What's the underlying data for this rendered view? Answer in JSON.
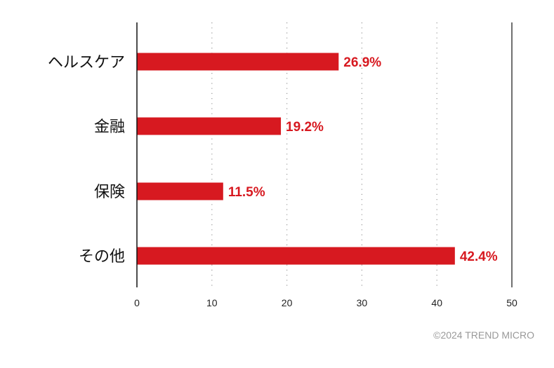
{
  "chart_data": {
    "type": "bar",
    "orientation": "horizontal",
    "categories": [
      "ヘルスケア",
      "金融",
      "保険",
      "その他"
    ],
    "values": [
      26.9,
      19.2,
      11.5,
      42.4
    ],
    "data_labels": [
      "26.9%",
      "19.2%",
      "11.5%",
      "42.4%"
    ],
    "xlim": [
      0,
      50
    ],
    "xticks": [
      "0",
      "10",
      "20",
      "30",
      "40",
      "50"
    ],
    "grid": "vertical-dotted",
    "bar_color": "#d71920",
    "label_color": "#d71920"
  },
  "footer": {
    "copyright": "©2024 TREND MICRO"
  }
}
